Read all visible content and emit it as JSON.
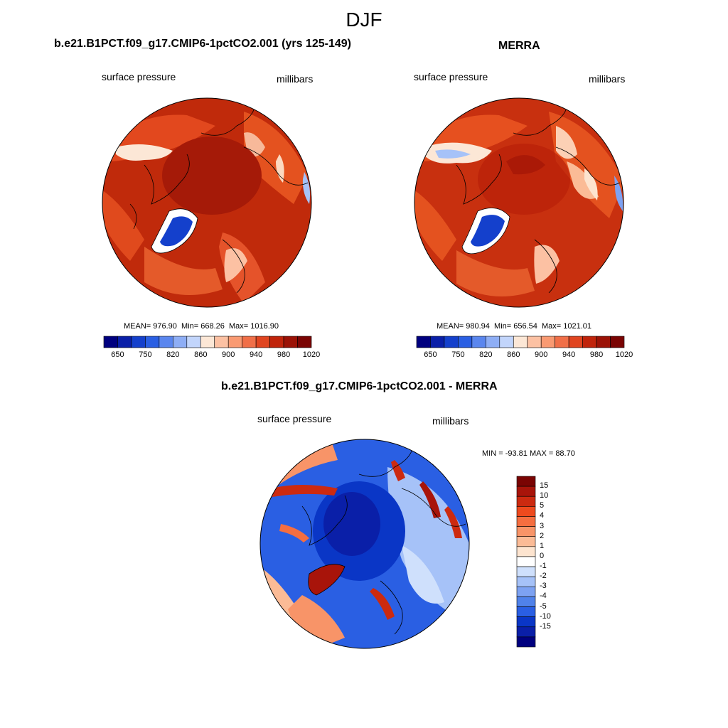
{
  "title": "DJF",
  "panels": {
    "model": {
      "title": "b.e21.B1PCT.f09_g17.CMIP6-1pctCO2.001 (yrs 125-149)",
      "variable": "surface pressure",
      "units": "millibars",
      "mean_label": "MEAN= 976.90",
      "min_label": "Min= 668.26",
      "max_label": "Max= 1016.90"
    },
    "obs": {
      "title": "MERRA",
      "variable": "surface pressure",
      "units": "millibars",
      "mean_label": "MEAN= 980.94",
      "min_label": "Min= 656.54",
      "max_label": "Max= 1021.01"
    },
    "diff": {
      "title": "b.e21.B1PCT.f09_g17.CMIP6-1pctCO2.001 - MERRA",
      "variable": "surface pressure",
      "units": "millibars",
      "minmax_label": "MIN = -93.81 MAX =  88.70"
    }
  },
  "colorbar_top": {
    "labels": [
      "650",
      "750",
      "820",
      "860",
      "900",
      "940",
      "980",
      "1020"
    ],
    "colors": [
      "#00007f",
      "#0a1fa8",
      "#1440cc",
      "#2a5fe3",
      "#5a86ee",
      "#8eaef5",
      "#c2d5fb",
      "#fce7d6",
      "#fcc1a3",
      "#f99a72",
      "#f06f48",
      "#e04520",
      "#c0240b",
      "#9b1206",
      "#7a0403"
    ]
  },
  "colorbar_diff": {
    "labels": [
      "15",
      "10",
      "5",
      "4",
      "3",
      "2",
      "1",
      "0",
      "-1",
      "-2",
      "-3",
      "-4",
      "-5",
      "-10",
      "-15"
    ],
    "colors": [
      "#7a0403",
      "#a8140a",
      "#cc2a10",
      "#ee4a1e",
      "#f56e40",
      "#f89468",
      "#fbbb96",
      "#fde4cf",
      "#ffffff",
      "#cfe0fc",
      "#a6c2f8",
      "#7da2f2",
      "#5082ea",
      "#2a5fe3",
      "#0a36c6",
      "#0a1fa8",
      "#00007f"
    ]
  }
}
